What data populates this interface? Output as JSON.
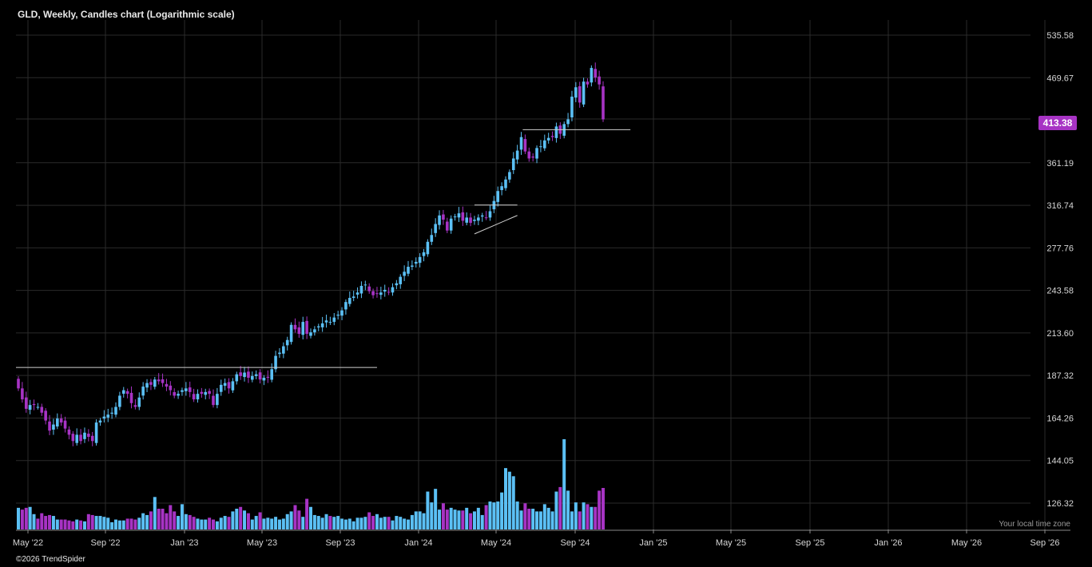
{
  "title": "GLD, Weekly, Candles chart (Logarithmic scale)",
  "footer": "©2026 TrendSpider",
  "timezone_label": "Your local time zone",
  "last_price_label": "413.38",
  "colors": {
    "up": "#5bc0f5",
    "down": "#a733c4",
    "grid": "#2a2a2a",
    "background": "#000000",
    "line": "#cfcfcf"
  },
  "chart_data": {
    "type": "candlestick",
    "title": "GLD, Weekly, Candles chart (Logarithmic scale)",
    "scale": "log",
    "x_ticks": [
      "May '22",
      "Sep '22",
      "Jan '23",
      "May '23",
      "Sep '23",
      "Jan '24",
      "May '24",
      "Sep '24",
      "Jan '25",
      "May '25",
      "Sep '25",
      "Jan '26",
      "May '26",
      "Sep '26"
    ],
    "y_ticks": [
      "535.58",
      "469.67",
      "413.38",
      "361.19",
      "316.74",
      "277.76",
      "243.58",
      "213.60",
      "187.32",
      "164.26",
      "144.05",
      "126.32"
    ],
    "grid": true,
    "last_price": 413.38,
    "closes": [
      180,
      174,
      169,
      171,
      171,
      170,
      167,
      163,
      158,
      161,
      164,
      162,
      159,
      156,
      153,
      156,
      153,
      157,
      155,
      153,
      162,
      163,
      165,
      166,
      167,
      170,
      176,
      179,
      177,
      172,
      170,
      175,
      181,
      183,
      182,
      185,
      184,
      183,
      181,
      179,
      176,
      177,
      179,
      180,
      178,
      174,
      177,
      177,
      178,
      177,
      171,
      177,
      182,
      183,
      180,
      184,
      188,
      187,
      189,
      186,
      187,
      188,
      185,
      186,
      186,
      191,
      199,
      201,
      205,
      209,
      219,
      216,
      213,
      221,
      213,
      214,
      216,
      218,
      220,
      222,
      221,
      224,
      226,
      229,
      235,
      238,
      239,
      242,
      247,
      248,
      243,
      240,
      241,
      242,
      244,
      242,
      246,
      249,
      254,
      258,
      262,
      263,
      266,
      270,
      274,
      283,
      289,
      299,
      307,
      303,
      293,
      304,
      306,
      309,
      302,
      305,
      300,
      303,
      305,
      307,
      305,
      311,
      321,
      331,
      336,
      343,
      351,
      366,
      375,
      391,
      374,
      366,
      367,
      378,
      380,
      387,
      390,
      391,
      404,
      395,
      407,
      413,
      443,
      456,
      435,
      464,
      460,
      484,
      470,
      460,
      413
    ],
    "volume_weeks": 151,
    "volume_relative": [
      0.24,
      0.22,
      0.24,
      0.25,
      0.17,
      0.12,
      0.18,
      0.15,
      0.16,
      0.15,
      0.11,
      0.11,
      0.11,
      0.1,
      0.09,
      0.11,
      0.1,
      0.09,
      0.17,
      0.16,
      0.15,
      0.15,
      0.14,
      0.13,
      0.08,
      0.11,
      0.1,
      0.1,
      0.12,
      0.12,
      0.11,
      0.13,
      0.18,
      0.16,
      0.2,
      0.36,
      0.23,
      0.23,
      0.18,
      0.27,
      0.2,
      0.15,
      0.28,
      0.17,
      0.16,
      0.14,
      0.12,
      0.11,
      0.11,
      0.13,
      0.11,
      0.09,
      0.13,
      0.15,
      0.14,
      0.2,
      0.23,
      0.25,
      0.21,
      0.18,
      0.11,
      0.15,
      0.19,
      0.12,
      0.13,
      0.12,
      0.14,
      0.11,
      0.12,
      0.17,
      0.2,
      0.27,
      0.21,
      0.14,
      0.34,
      0.25,
      0.16,
      0.15,
      0.13,
      0.17,
      0.15,
      0.14,
      0.15,
      0.12,
      0.11,
      0.12,
      0.09,
      0.13,
      0.13,
      0.14,
      0.19,
      0.15,
      0.17,
      0.13,
      0.14,
      0.14,
      0.1,
      0.15,
      0.14,
      0.12,
      0.11,
      0.16,
      0.2,
      0.2,
      0.18,
      0.42,
      0.3,
      0.45,
      0.22,
      0.29,
      0.22,
      0.24,
      0.22,
      0.21,
      0.21,
      0.24,
      0.18,
      0.2,
      0.24,
      0.16,
      0.27,
      0.31,
      0.3,
      0.31,
      0.41,
      0.68,
      0.64,
      0.59,
      0.31,
      0.21,
      0.29,
      0.23,
      0.23,
      0.2,
      0.2,
      0.28,
      0.24,
      0.2,
      0.42,
      0.47,
      1.0,
      0.43,
      0.2,
      0.3,
      0.2,
      0.3,
      0.28,
      0.25,
      0.25,
      0.43,
      0.46
    ],
    "horizontal_lines": [
      {
        "price": 192,
        "from_week": 0,
        "to_week": 92
      },
      {
        "price": 400,
        "from_week": 130,
        "to_week": 157
      }
    ],
    "trendlines": [
      {
        "from": {
          "week": 117,
          "price": 317
        },
        "to": {
          "week": 128,
          "price": 317
        }
      },
      {
        "from": {
          "week": 117,
          "price": 290
        },
        "to": {
          "week": 128,
          "price": 307
        }
      }
    ]
  }
}
